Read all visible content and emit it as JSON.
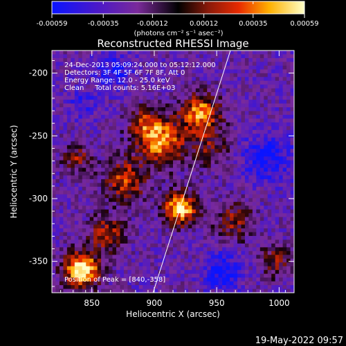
{
  "chart_data": {
    "type": "heatmap",
    "title": "Reconstructed RHESSI Image",
    "xlabel": "Heliocentric X (arcsec)",
    "ylabel": "Heliocentric Y (arcsec)",
    "xlim": [
      818,
      1012
    ],
    "ylim": [
      -375,
      -182
    ],
    "x_ticks": [
      850,
      900,
      950,
      1000
    ],
    "y_ticks": [
      -200,
      -250,
      -300,
      -350
    ],
    "colorbar": {
      "ticks": [
        "-0.00059",
        "-0.00035",
        "-0.00012",
        "0.00012",
        "0.00035",
        "0.00059"
      ],
      "units": "(photons cm⁻² s⁻¹ asec⁻²)",
      "range": [
        -0.00059,
        0.00059
      ]
    },
    "annotations": [
      "24-Dec-2013 05:09:24.000 to 05:12:12.000",
      "Detectors: 3F 4F 5F 6F 7F 8F, Att 0",
      "Energy Range: 12.0 - 25.0 keV",
      "Clean     Total counts: 5.16E+03"
    ],
    "peak_label": "Position of Peak = [840,-358]",
    "peak_position": [
      840,
      -358
    ],
    "limb_line": [
      [
        899,
        -375
      ],
      [
        961,
        -182
      ]
    ],
    "emission_sources": [
      {
        "x": 921,
        "y": -308,
        "amp": 1.0,
        "sigma": 9
      },
      {
        "x": 842,
        "y": -357,
        "amp": 1.05,
        "sigma": 10
      },
      {
        "x": 906,
        "y": -255,
        "amp": 0.75,
        "sigma": 13
      },
      {
        "x": 937,
        "y": -232,
        "amp": 0.78,
        "sigma": 11
      },
      {
        "x": 877,
        "y": -285,
        "amp": 0.6,
        "sigma": 12
      },
      {
        "x": 893,
        "y": -240,
        "amp": 0.45,
        "sigma": 10
      },
      {
        "x": 964,
        "y": -318,
        "amp": 0.45,
        "sigma": 11
      },
      {
        "x": 998,
        "y": -350,
        "amp": 0.4,
        "sigma": 9
      },
      {
        "x": 838,
        "y": -268,
        "amp": 0.45,
        "sigma": 8
      },
      {
        "x": 945,
        "y": -260,
        "amp": 0.35,
        "sigma": 12
      },
      {
        "x": 862,
        "y": -328,
        "amp": 0.55,
        "sigma": 10
      }
    ],
    "negative_sources": [
      {
        "x": 868,
        "y": -198,
        "amp": 0.5,
        "sigma": 10
      },
      {
        "x": 990,
        "y": -268,
        "amp": 0.55,
        "sigma": 14
      },
      {
        "x": 955,
        "y": -358,
        "amp": 0.6,
        "sigma": 10
      },
      {
        "x": 842,
        "y": -225,
        "amp": 0.35,
        "sigma": 8
      }
    ],
    "grid": false,
    "legend": "none"
  },
  "footer": {
    "timestamp": "19-May-2022 09:57"
  }
}
